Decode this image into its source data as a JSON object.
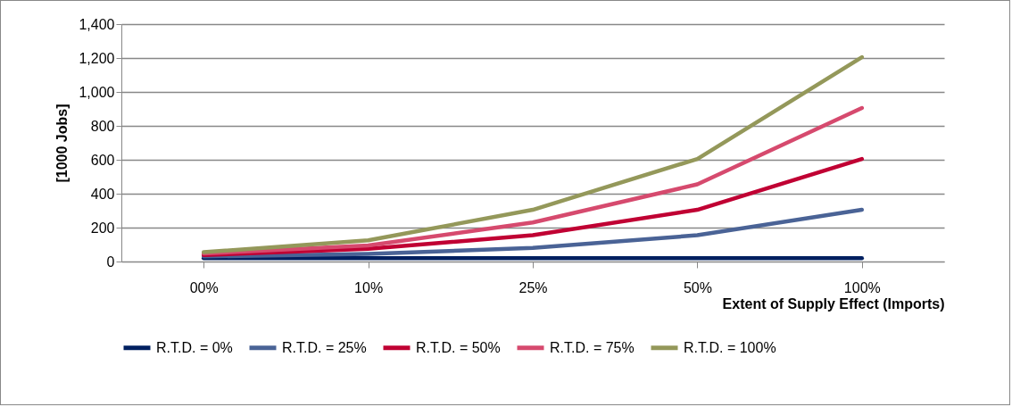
{
  "chart_data": {
    "type": "line",
    "xlabel": "Extent of Supply Effect (Imports)",
    "ylabel": "[1000 Jobs]",
    "categories": [
      "00%",
      "10%",
      "25%",
      "50%",
      "100%"
    ],
    "ylim": [
      0,
      1400
    ],
    "yticks": [
      {
        "value": 0,
        "label": "0"
      },
      {
        "value": 200,
        "label": "200"
      },
      {
        "value": 400,
        "label": "400"
      },
      {
        "value": 600,
        "label": "600"
      },
      {
        "value": 800,
        "label": "800"
      },
      {
        "value": 1000,
        "label": "1,000"
      },
      {
        "value": 1200,
        "label": "1,200"
      },
      {
        "value": 1400,
        "label": "1,400"
      }
    ],
    "grid": "y",
    "legend": "bottom",
    "marker": "none",
    "line_style": "solid",
    "series": [
      {
        "name": "R.T.D. = 0%",
        "color": "#002060",
        "values": [
          20,
          20,
          20,
          20,
          20
        ]
      },
      {
        "name": "R.T.D. = 25%",
        "color": "#4a6396",
        "values": [
          30,
          45,
          80,
          155,
          305
        ]
      },
      {
        "name": "R.T.D. = 50%",
        "color": "#c00033",
        "values": [
          38,
          75,
          155,
          305,
          605
        ]
      },
      {
        "name": "R.T.D. = 75%",
        "color": "#d64a6e",
        "values": [
          47,
          95,
          230,
          455,
          905
        ]
      },
      {
        "name": "R.T.D. = 100%",
        "color": "#94985a",
        "values": [
          55,
          125,
          305,
          605,
          1205
        ]
      }
    ]
  }
}
